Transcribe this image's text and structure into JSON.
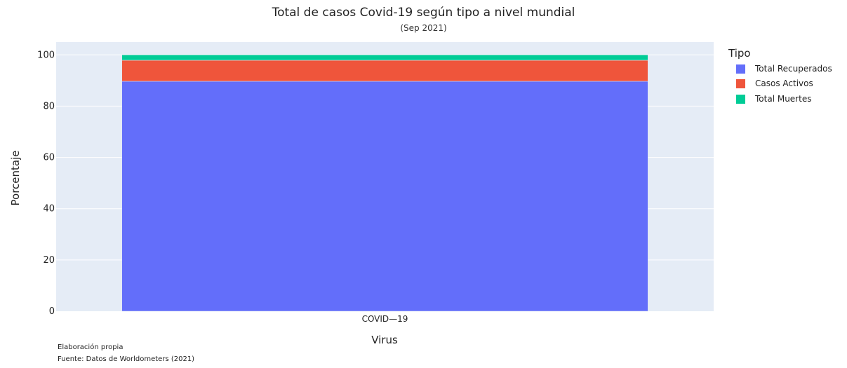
{
  "chart_data": {
    "type": "bar",
    "title": "Total de casos Covid-19  según tipo a nivel mundial",
    "subtitle": "(Sep 2021)",
    "xlabel": "Virus",
    "ylabel": "Porcentaje",
    "categories": [
      "COVID—19"
    ],
    "ylim": [
      0,
      105
    ],
    "yticks": [
      0,
      20,
      40,
      60,
      80,
      100
    ],
    "legend_title": "Tipo",
    "legend_position": "right",
    "grid": true,
    "stacked": true,
    "series": [
      {
        "name": "Total Recuperados",
        "values": [
          89.7
        ],
        "color": "#636efa"
      },
      {
        "name": "Casos Activos",
        "values": [
          8.2
        ],
        "color": "#ef553b"
      },
      {
        "name": "Total Muertes",
        "values": [
          2.1
        ],
        "color": "#00cc96"
      }
    ]
  },
  "annotations": {
    "line1": "Elaboración propia",
    "line2": "Fuente: Datos de Worldometers (2021)"
  }
}
